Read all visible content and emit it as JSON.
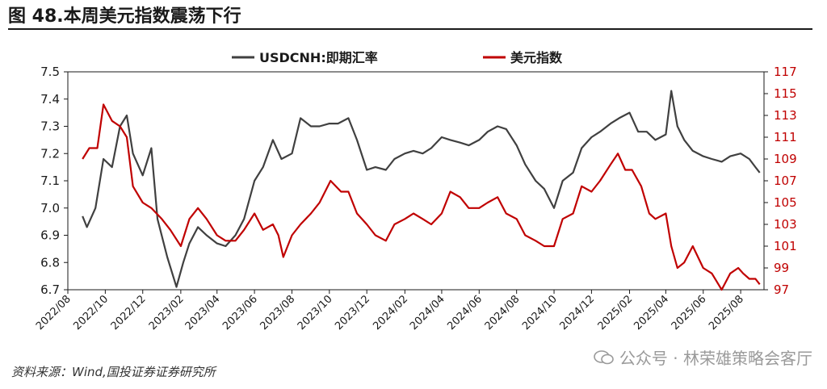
{
  "figure": {
    "title": "图 48.本周美元指数震荡下行",
    "source": "资料来源：Wind,国投证券证券研究所",
    "watermark": "公众号 · 林荣雄策略会客厅"
  },
  "chart_data": {
    "type": "line",
    "left_axis": {
      "ylim": [
        6.7,
        7.5
      ],
      "ticks": [
        "7.5",
        "7.4",
        "7.3",
        "7.2",
        "7.1",
        "7.0",
        "6.9",
        "6.8",
        "6.7"
      ]
    },
    "right_axis": {
      "ylim": [
        97,
        117
      ],
      "ticks": [
        "117",
        "115",
        "113",
        "111",
        "109",
        "107",
        "105",
        "103",
        "101",
        "99",
        "97"
      ]
    },
    "x_ticks": [
      "2022/08",
      "2022/10",
      "2022/12",
      "2023/02",
      "2023/04",
      "2023/06",
      "2023/08",
      "2023/10",
      "2023/12",
      "2024/02",
      "2024/04",
      "2024/06",
      "2024/08",
      "2024/10",
      "2024/12",
      "2025/02",
      "2025/04",
      "2025/06",
      "2025/08"
    ],
    "legend_placement": "top",
    "grid": false,
    "colors": {
      "usdcnh": "#404040",
      "dxy": "#c00000"
    },
    "series": [
      {
        "name": "USDCNH:即期汇率",
        "axis": "left",
        "points": [
          [
            "2022/08/25",
            6.97
          ],
          [
            "2022/09/01",
            6.93
          ],
          [
            "2022/09/15",
            7.0
          ],
          [
            "2022/09/28",
            7.18
          ],
          [
            "2022/10/12",
            7.15
          ],
          [
            "2022/10/25",
            7.3
          ],
          [
            "2022/11/05",
            7.34
          ],
          [
            "2022/11/15",
            7.2
          ],
          [
            "2022/12/01",
            7.12
          ],
          [
            "2022/12/15",
            7.22
          ],
          [
            "2022/12/25",
            6.96
          ],
          [
            "2023/01/10",
            6.82
          ],
          [
            "2023/01/25",
            6.71
          ],
          [
            "2023/02/05",
            6.8
          ],
          [
            "2023/02/15",
            6.87
          ],
          [
            "2023/03/01",
            6.93
          ],
          [
            "2023/03/15",
            6.9
          ],
          [
            "2023/04/01",
            6.87
          ],
          [
            "2023/04/15",
            6.86
          ],
          [
            "2023/05/01",
            6.9
          ],
          [
            "2023/05/15",
            6.96
          ],
          [
            "2023/06/01",
            7.1
          ],
          [
            "2023/06/15",
            7.15
          ],
          [
            "2023/07/01",
            7.25
          ],
          [
            "2023/07/15",
            7.18
          ],
          [
            "2023/08/01",
            7.2
          ],
          [
            "2023/08/15",
            7.33
          ],
          [
            "2023/09/01",
            7.3
          ],
          [
            "2023/09/15",
            7.3
          ],
          [
            "2023/10/01",
            7.31
          ],
          [
            "2023/10/15",
            7.31
          ],
          [
            "2023/11/01",
            7.33
          ],
          [
            "2023/11/15",
            7.25
          ],
          [
            "2023/12/01",
            7.14
          ],
          [
            "2023/12/15",
            7.15
          ],
          [
            "2024/01/01",
            7.14
          ],
          [
            "2024/01/15",
            7.18
          ],
          [
            "2024/02/01",
            7.2
          ],
          [
            "2024/02/15",
            7.21
          ],
          [
            "2024/03/01",
            7.2
          ],
          [
            "2024/03/15",
            7.22
          ],
          [
            "2024/04/01",
            7.26
          ],
          [
            "2024/04/15",
            7.25
          ],
          [
            "2024/05/01",
            7.24
          ],
          [
            "2024/05/15",
            7.23
          ],
          [
            "2024/06/01",
            7.25
          ],
          [
            "2024/06/15",
            7.28
          ],
          [
            "2024/07/01",
            7.3
          ],
          [
            "2024/07/15",
            7.29
          ],
          [
            "2024/08/01",
            7.23
          ],
          [
            "2024/08/15",
            7.16
          ],
          [
            "2024/09/01",
            7.1
          ],
          [
            "2024/09/15",
            7.07
          ],
          [
            "2024/10/01",
            7.0
          ],
          [
            "2024/10/15",
            7.1
          ],
          [
            "2024/11/01",
            7.13
          ],
          [
            "2024/11/15",
            7.22
          ],
          [
            "2024/12/01",
            7.26
          ],
          [
            "2024/12/15",
            7.28
          ],
          [
            "2025/01/01",
            7.31
          ],
          [
            "2025/01/15",
            7.33
          ],
          [
            "2025/02/01",
            7.35
          ],
          [
            "2025/02/15",
            7.28
          ],
          [
            "2025/03/01",
            7.28
          ],
          [
            "2025/03/15",
            7.25
          ],
          [
            "2025/04/01",
            7.27
          ],
          [
            "2025/04/10",
            7.43
          ],
          [
            "2025/04/20",
            7.3
          ],
          [
            "2025/05/01",
            7.25
          ],
          [
            "2025/05/15",
            7.21
          ],
          [
            "2025/06/01",
            7.19
          ],
          [
            "2025/06/15",
            7.18
          ],
          [
            "2025/07/01",
            7.17
          ],
          [
            "2025/07/15",
            7.19
          ],
          [
            "2025/08/01",
            7.2
          ],
          [
            "2025/08/15",
            7.18
          ],
          [
            "2025/08/25",
            7.15
          ],
          [
            "2025/09/01",
            7.13
          ]
        ]
      },
      {
        "name": "美元指数",
        "axis": "right",
        "points": [
          [
            "2022/08/25",
            109
          ],
          [
            "2022/09/05",
            110
          ],
          [
            "2022/09/18",
            110
          ],
          [
            "2022/09/28",
            114
          ],
          [
            "2022/10/12",
            112.5
          ],
          [
            "2022/10/25",
            112
          ],
          [
            "2022/11/05",
            111
          ],
          [
            "2022/11/15",
            106.5
          ],
          [
            "2022/12/01",
            105
          ],
          [
            "2022/12/15",
            104.5
          ],
          [
            "2023/01/01",
            103.5
          ],
          [
            "2023/01/15",
            102.5
          ],
          [
            "2023/02/01",
            101
          ],
          [
            "2023/02/15",
            103.5
          ],
          [
            "2023/03/01",
            104.5
          ],
          [
            "2023/03/15",
            103.5
          ],
          [
            "2023/04/01",
            102
          ],
          [
            "2023/04/15",
            101.5
          ],
          [
            "2023/05/01",
            101.5
          ],
          [
            "2023/05/15",
            102.5
          ],
          [
            "2023/06/01",
            104
          ],
          [
            "2023/06/15",
            102.5
          ],
          [
            "2023/07/01",
            103
          ],
          [
            "2023/07/10",
            102
          ],
          [
            "2023/07/18",
            100
          ],
          [
            "2023/08/01",
            102
          ],
          [
            "2023/08/15",
            103
          ],
          [
            "2023/09/01",
            104
          ],
          [
            "2023/09/15",
            105
          ],
          [
            "2023/10/03",
            107
          ],
          [
            "2023/10/20",
            106
          ],
          [
            "2023/11/01",
            106
          ],
          [
            "2023/11/15",
            104
          ],
          [
            "2023/12/01",
            103
          ],
          [
            "2023/12/15",
            102
          ],
          [
            "2024/01/01",
            101.5
          ],
          [
            "2024/01/15",
            103
          ],
          [
            "2024/02/01",
            103.5
          ],
          [
            "2024/02/15",
            104
          ],
          [
            "2024/03/01",
            103.5
          ],
          [
            "2024/03/15",
            103
          ],
          [
            "2024/04/01",
            104
          ],
          [
            "2024/04/15",
            106
          ],
          [
            "2024/05/01",
            105.5
          ],
          [
            "2024/05/15",
            104.5
          ],
          [
            "2024/06/01",
            104.5
          ],
          [
            "2024/06/15",
            105
          ],
          [
            "2024/07/01",
            105.5
          ],
          [
            "2024/07/15",
            104
          ],
          [
            "2024/08/01",
            103.5
          ],
          [
            "2024/08/15",
            102
          ],
          [
            "2024/09/01",
            101.5
          ],
          [
            "2024/09/15",
            101
          ],
          [
            "2024/10/01",
            101
          ],
          [
            "2024/10/15",
            103.5
          ],
          [
            "2024/11/01",
            104
          ],
          [
            "2024/11/15",
            106.5
          ],
          [
            "2024/12/01",
            106
          ],
          [
            "2024/12/15",
            107
          ],
          [
            "2025/01/01",
            108.5
          ],
          [
            "2025/01/13",
            109.5
          ],
          [
            "2025/01/25",
            108
          ],
          [
            "2025/02/05",
            108
          ],
          [
            "2025/02/20",
            106.5
          ],
          [
            "2025/03/05",
            104
          ],
          [
            "2025/03/15",
            103.5
          ],
          [
            "2025/04/01",
            104
          ],
          [
            "2025/04/10",
            101
          ],
          [
            "2025/04/20",
            99
          ],
          [
            "2025/05/01",
            99.5
          ],
          [
            "2025/05/15",
            101
          ],
          [
            "2025/06/01",
            99
          ],
          [
            "2025/06/15",
            98.5
          ],
          [
            "2025/07/01",
            97
          ],
          [
            "2025/07/15",
            98.5
          ],
          [
            "2025/07/28",
            99
          ],
          [
            "2025/08/05",
            98.5
          ],
          [
            "2025/08/15",
            98
          ],
          [
            "2025/08/25",
            98
          ],
          [
            "2025/09/01",
            97.5
          ]
        ]
      }
    ]
  }
}
